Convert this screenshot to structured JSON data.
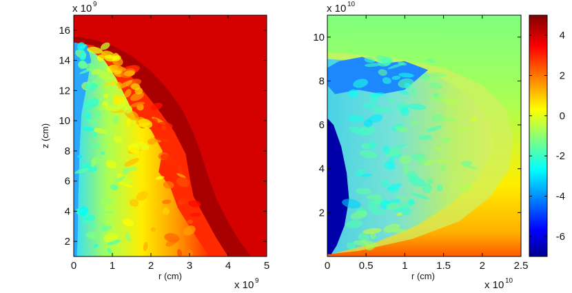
{
  "chart_data": [
    {
      "type": "heatmap",
      "panel": "left",
      "xlabel": "r (cm)",
      "ylabel": "z (cm)",
      "x_exponent_label": "x 10",
      "x_exponent_power": "9",
      "y_exponent_label": "x 10",
      "y_exponent_power": "9",
      "xlim": [
        0,
        5
      ],
      "ylim": [
        1,
        17
      ],
      "x_ticks": [
        "0",
        "1",
        "2",
        "3",
        "4",
        "5"
      ],
      "y_ticks": [
        "2",
        "4",
        "6",
        "8",
        "10",
        "12",
        "14",
        "16"
      ],
      "field_description_values": {
        "ambient_value": 4,
        "shock_front_z_on_axis": 15.6,
        "shock_front_r_at_base": 4.6,
        "interior_range": [
          -2.5,
          3
        ]
      },
      "colormap": "jet",
      "clim": [
        -7,
        5
      ]
    },
    {
      "type": "heatmap",
      "panel": "right",
      "xlabel": "r (cm)",
      "ylabel": "",
      "x_exponent_label": "x 10",
      "x_exponent_power": "10",
      "y_exponent_label": "x 10",
      "y_exponent_power": "10",
      "xlim": [
        0,
        2.5
      ],
      "ylim": [
        0,
        11
      ],
      "x_ticks": [
        "0",
        "0.5",
        "1",
        "1.5",
        "2",
        "2.5"
      ],
      "y_ticks": [
        "2",
        "4",
        "6",
        "8",
        "10"
      ],
      "field_description_values": {
        "ambient_top_value": -0.3,
        "ambient_bottom_value": 2.5,
        "core_value": -6.5,
        "shell_outer_r": 2.4,
        "shell_top_z": 9.3
      },
      "colormap": "jet",
      "clim": [
        -7,
        5
      ]
    }
  ],
  "colorbar": {
    "ticks": [
      "4",
      "2",
      "0",
      "-2",
      "-4",
      "-6"
    ],
    "tick_values": [
      4,
      2,
      0,
      -2,
      -4,
      -6
    ],
    "range": [
      -7,
      5
    ],
    "colors": [
      "#00008f",
      "#0000ff",
      "#00ffff",
      "#ffff00",
      "#ff0000",
      "#800000"
    ]
  }
}
